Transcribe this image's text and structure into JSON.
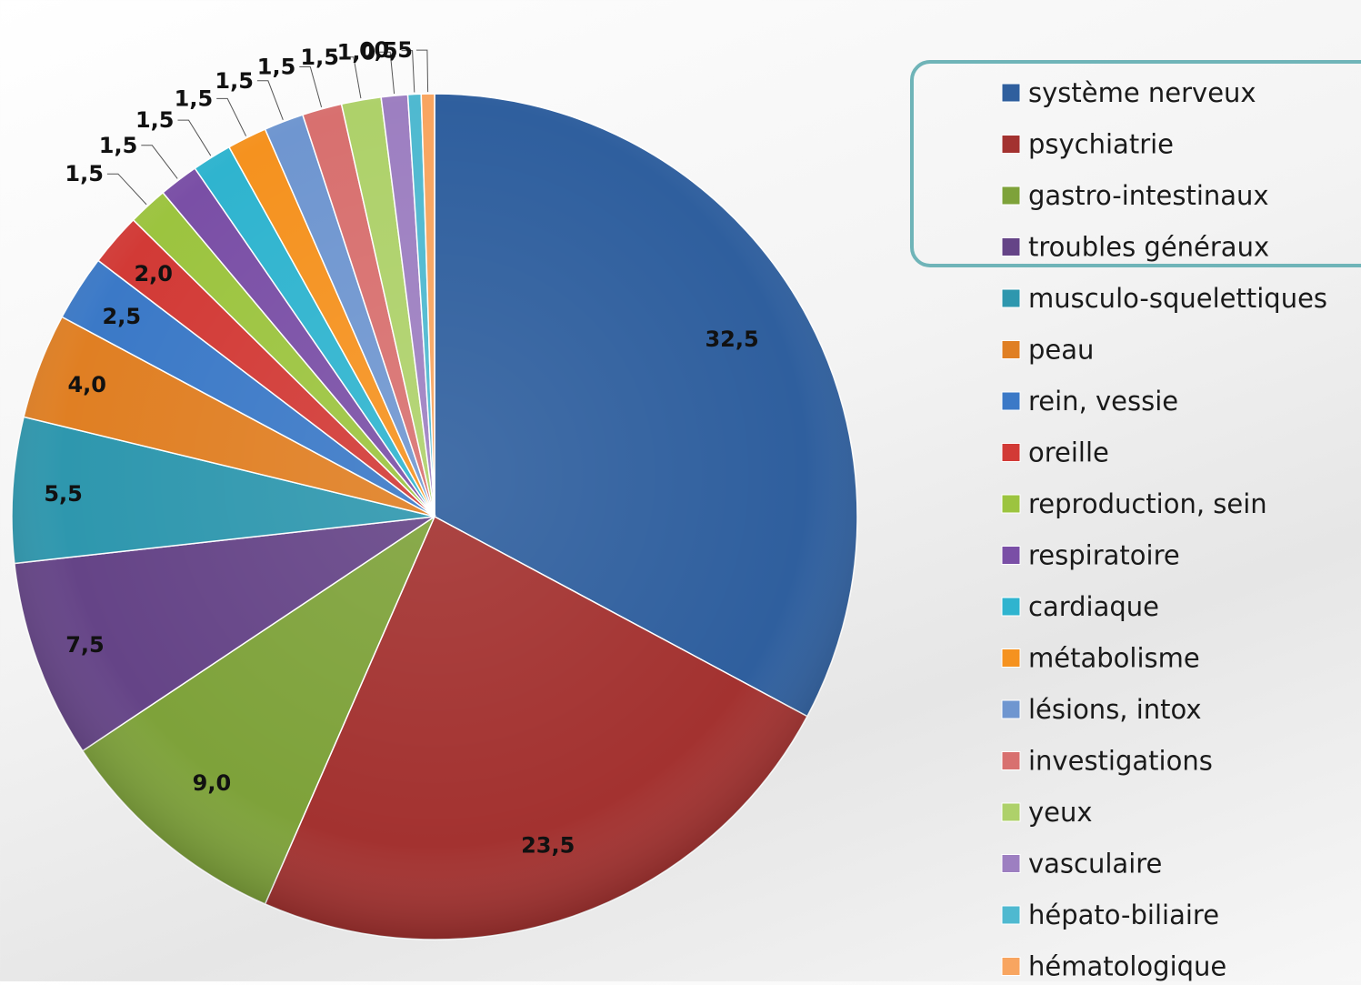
{
  "chart_data": {
    "type": "pie",
    "categories": [
      "système nerveux",
      "psychiatrie",
      "gastro-intestinaux",
      "troubles généraux",
      "musculo-squelettiques",
      "peau",
      "rein, vessie",
      "oreille",
      "reproduction, sein",
      "respiratoire",
      "cardiaque",
      "métabolisme",
      "lésions, intox",
      "investigations",
      "yeux",
      "vasculaire",
      "hépato-biliaire",
      "hématologique"
    ],
    "values": [
      32.5,
      23.5,
      9.0,
      7.5,
      5.5,
      4.0,
      2.5,
      2.0,
      1.5,
      1.5,
      1.5,
      1.5,
      1.5,
      1.5,
      1.5,
      1.0,
      0.5,
      0.5
    ],
    "labels": [
      "32,5",
      "23,5",
      "9,0",
      "7,5",
      "5,5",
      "4,0",
      "2,5",
      "2,0",
      "1,5",
      "1,5",
      "1,5",
      "1,5",
      "1,5",
      "1,5",
      "1,5",
      "1,0",
      "0,5",
      "0,5"
    ],
    "colors": [
      "#2f5f9e",
      "#a33230",
      "#7ea23a",
      "#654487",
      "#2e97ae",
      "#e07f23",
      "#3b79c7",
      "#d23a36",
      "#9cc43f",
      "#7a4fa6",
      "#2fb4cf",
      "#f5921f",
      "#6f96d0",
      "#d8706f",
      "#aed16a",
      "#9d7fc1",
      "#4fb9d0",
      "#f8a560"
    ],
    "legend_position": "right",
    "highlighted_legend_items": [
      "système nerveux",
      "psychiatrie",
      "gastro-intestinaux",
      "troubles généraux"
    ]
  }
}
